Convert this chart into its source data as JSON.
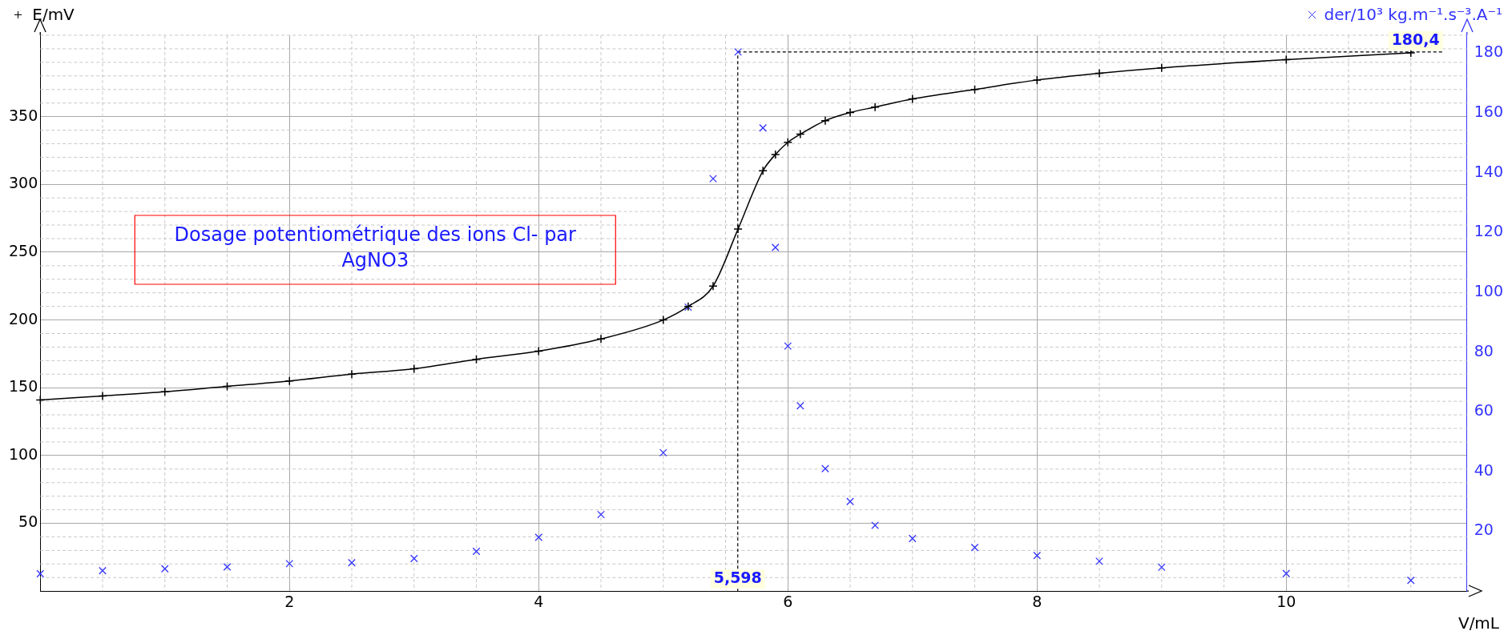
{
  "chart_data": {
    "type": "line",
    "xlabel": "V/mL",
    "ylabel": "E/mV",
    "y2label": "der/10³ kg.m⁻¹.s⁻³.A⁻¹",
    "annotations": [
      "Dosage potentiométrique des ions Cl- par AgNO3"
    ],
    "xlim": [
      0,
      11.45
    ],
    "xticks": [
      2,
      4,
      6,
      8,
      10
    ],
    "ylim": [
      0,
      410
    ],
    "yticks": [
      50,
      100,
      150,
      200,
      250,
      300,
      350
    ],
    "y2lim": [
      0,
      186
    ],
    "y2ticks": [
      20,
      40,
      60,
      80,
      100,
      120,
      140,
      160,
      180
    ],
    "grid": true,
    "marker": "cross",
    "legend": false,
    "series": [
      {
        "type": "line",
        "color": "#000000",
        "x": [
          0,
          0.5,
          1,
          1.5,
          2,
          2.5,
          3,
          3.5,
          4,
          4.5,
          5,
          5.2,
          5.4,
          5.6,
          5.8,
          5.9,
          6,
          6.1,
          6.3,
          6.5,
          6.7,
          7,
          7.5,
          8,
          8.5,
          9,
          10,
          11
        ],
        "values": [
          141,
          144,
          147,
          151,
          155,
          160,
          164,
          171,
          177,
          186,
          200,
          210,
          225,
          267,
          310,
          322,
          331,
          337,
          347,
          353,
          357,
          363,
          370,
          377,
          382,
          386,
          392,
          397
        ]
      },
      {
        "type": "scatter",
        "axis": "y2",
        "color": "#3333ff",
        "x": [
          0,
          0.5,
          1,
          1.5,
          2,
          2.5,
          3,
          3.5,
          4,
          4.5,
          5,
          5.2,
          5.4,
          5.6,
          5.8,
          5.9,
          6,
          6.1,
          6.3,
          6.5,
          6.7,
          7,
          7.5,
          8,
          8.5,
          9,
          10,
          11
        ],
        "values": [
          5.8,
          6.8,
          7.5,
          8.1,
          9.2,
          9.5,
          10.9,
          13.3,
          18,
          25.6,
          46.3,
          95,
          138,
          180.4,
          155,
          115,
          82,
          62,
          41,
          30,
          22,
          17.6,
          14.6,
          11.9,
          10,
          8,
          5.9,
          3.6
        ]
      }
    ],
    "ref_lines": [
      {
        "axis": "x",
        "value": 5.598,
        "label": "5,598",
        "color": "#000000",
        "line_style": "dashed"
      },
      {
        "axis": "y2",
        "value": 180.4,
        "label": "180,4",
        "color": "#000000",
        "line_style": "dashed"
      }
    ]
  }
}
